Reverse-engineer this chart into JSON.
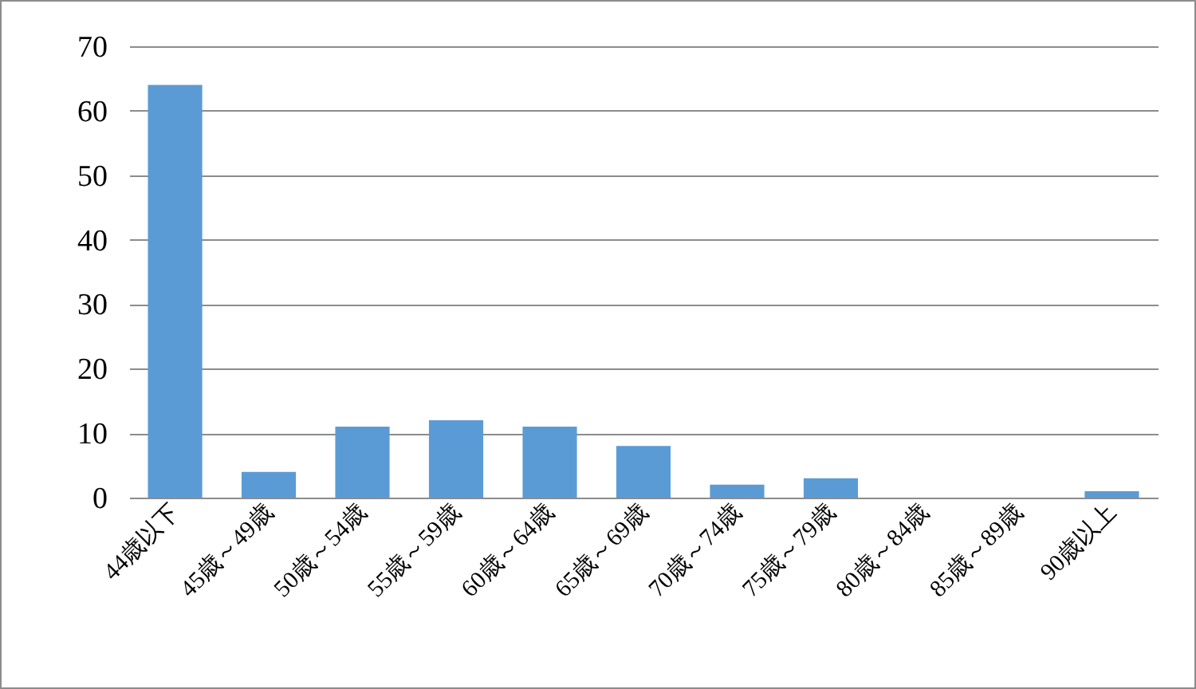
{
  "chart_data": {
    "type": "bar",
    "categories": [
      "44歳以下",
      "45歳～49歳",
      "50歳～54歳",
      "55歳～59歳",
      "60歳～64歳",
      "65歳～69歳",
      "70歳～74歳",
      "75歳～79歳",
      "80歳～84歳",
      "85歳～89歳",
      "90歳以上"
    ],
    "values": [
      64,
      4,
      11,
      12,
      11,
      8,
      2,
      3,
      0,
      0,
      1
    ],
    "color": "#5b9bd5",
    "ylim": [
      0,
      70
    ],
    "yticks": [
      0,
      10,
      20,
      30,
      40,
      50,
      60,
      70
    ],
    "grid": "y"
  }
}
